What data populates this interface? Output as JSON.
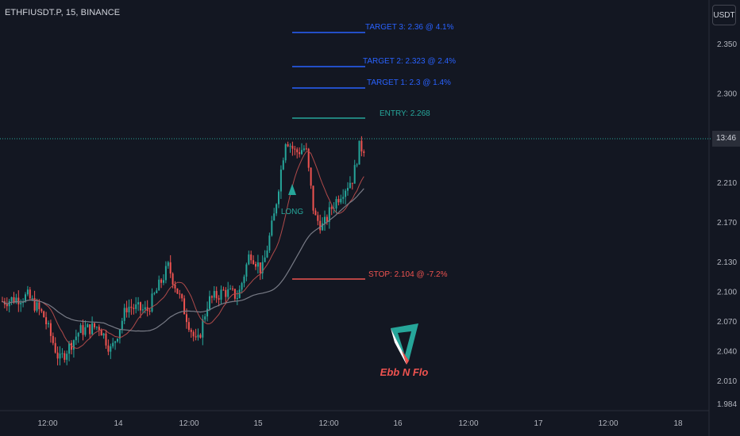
{
  "header": {
    "title": "ETHFIUSDT.P, 15, BINANCE"
  },
  "price_axis": {
    "currency": "USDT",
    "current_time_label": "13:46"
  },
  "colors": {
    "background": "#131722",
    "up_candle": "#26a69a",
    "down_candle": "#ef5350",
    "target": "#2962ff",
    "entry": "#26a69a",
    "stop": "#ef5350",
    "ma_fast": "#b04a4a",
    "ma_slow": "#787b86"
  },
  "signal": {
    "label": "LONG",
    "marker": "triangle-up-icon"
  },
  "logo": {
    "text": "EBB N FLO",
    "icon": "ebb-n-flo-logo-icon"
  },
  "chart_data": {
    "type": "candlestick",
    "title": "ETHFIUSDT.P, 15, BINANCE",
    "y_ticks": [
      2.35,
      2.3,
      2.21,
      2.17,
      2.13,
      2.1,
      2.07,
      2.04,
      2.01,
      1.984
    ],
    "y_tick_labels": [
      "2.350",
      "2.300",
      "2.210",
      "2.170",
      "2.130",
      "2.100",
      "2.070",
      "2.040",
      "2.010",
      "1.984"
    ],
    "x_tick_labels": [
      "12:00",
      "14",
      "12:00",
      "15",
      "12:00",
      "16",
      "12:00",
      "17",
      "12:00",
      "18"
    ],
    "current_price": 2.25,
    "levels": [
      {
        "name": "TARGET 3",
        "label": "TARGET 3: 2.36 @ 4.1%",
        "price": 2.36,
        "kind": "target"
      },
      {
        "name": "TARGET 2",
        "label": "TARGET 2: 2.323 @ 2.4%",
        "price": 2.323,
        "kind": "target"
      },
      {
        "name": "TARGET 1",
        "label": "TARGET 1: 2.3 @ 1.4%",
        "price": 2.3,
        "kind": "target"
      },
      {
        "name": "ENTRY",
        "label": "ENTRY: 2.268",
        "price": 2.268,
        "kind": "entry"
      },
      {
        "name": "STOP",
        "label": "STOP: 2.104 @ -7.2%",
        "price": 2.104,
        "kind": "stop"
      }
    ],
    "signal_price": 2.215,
    "grid": false
  }
}
